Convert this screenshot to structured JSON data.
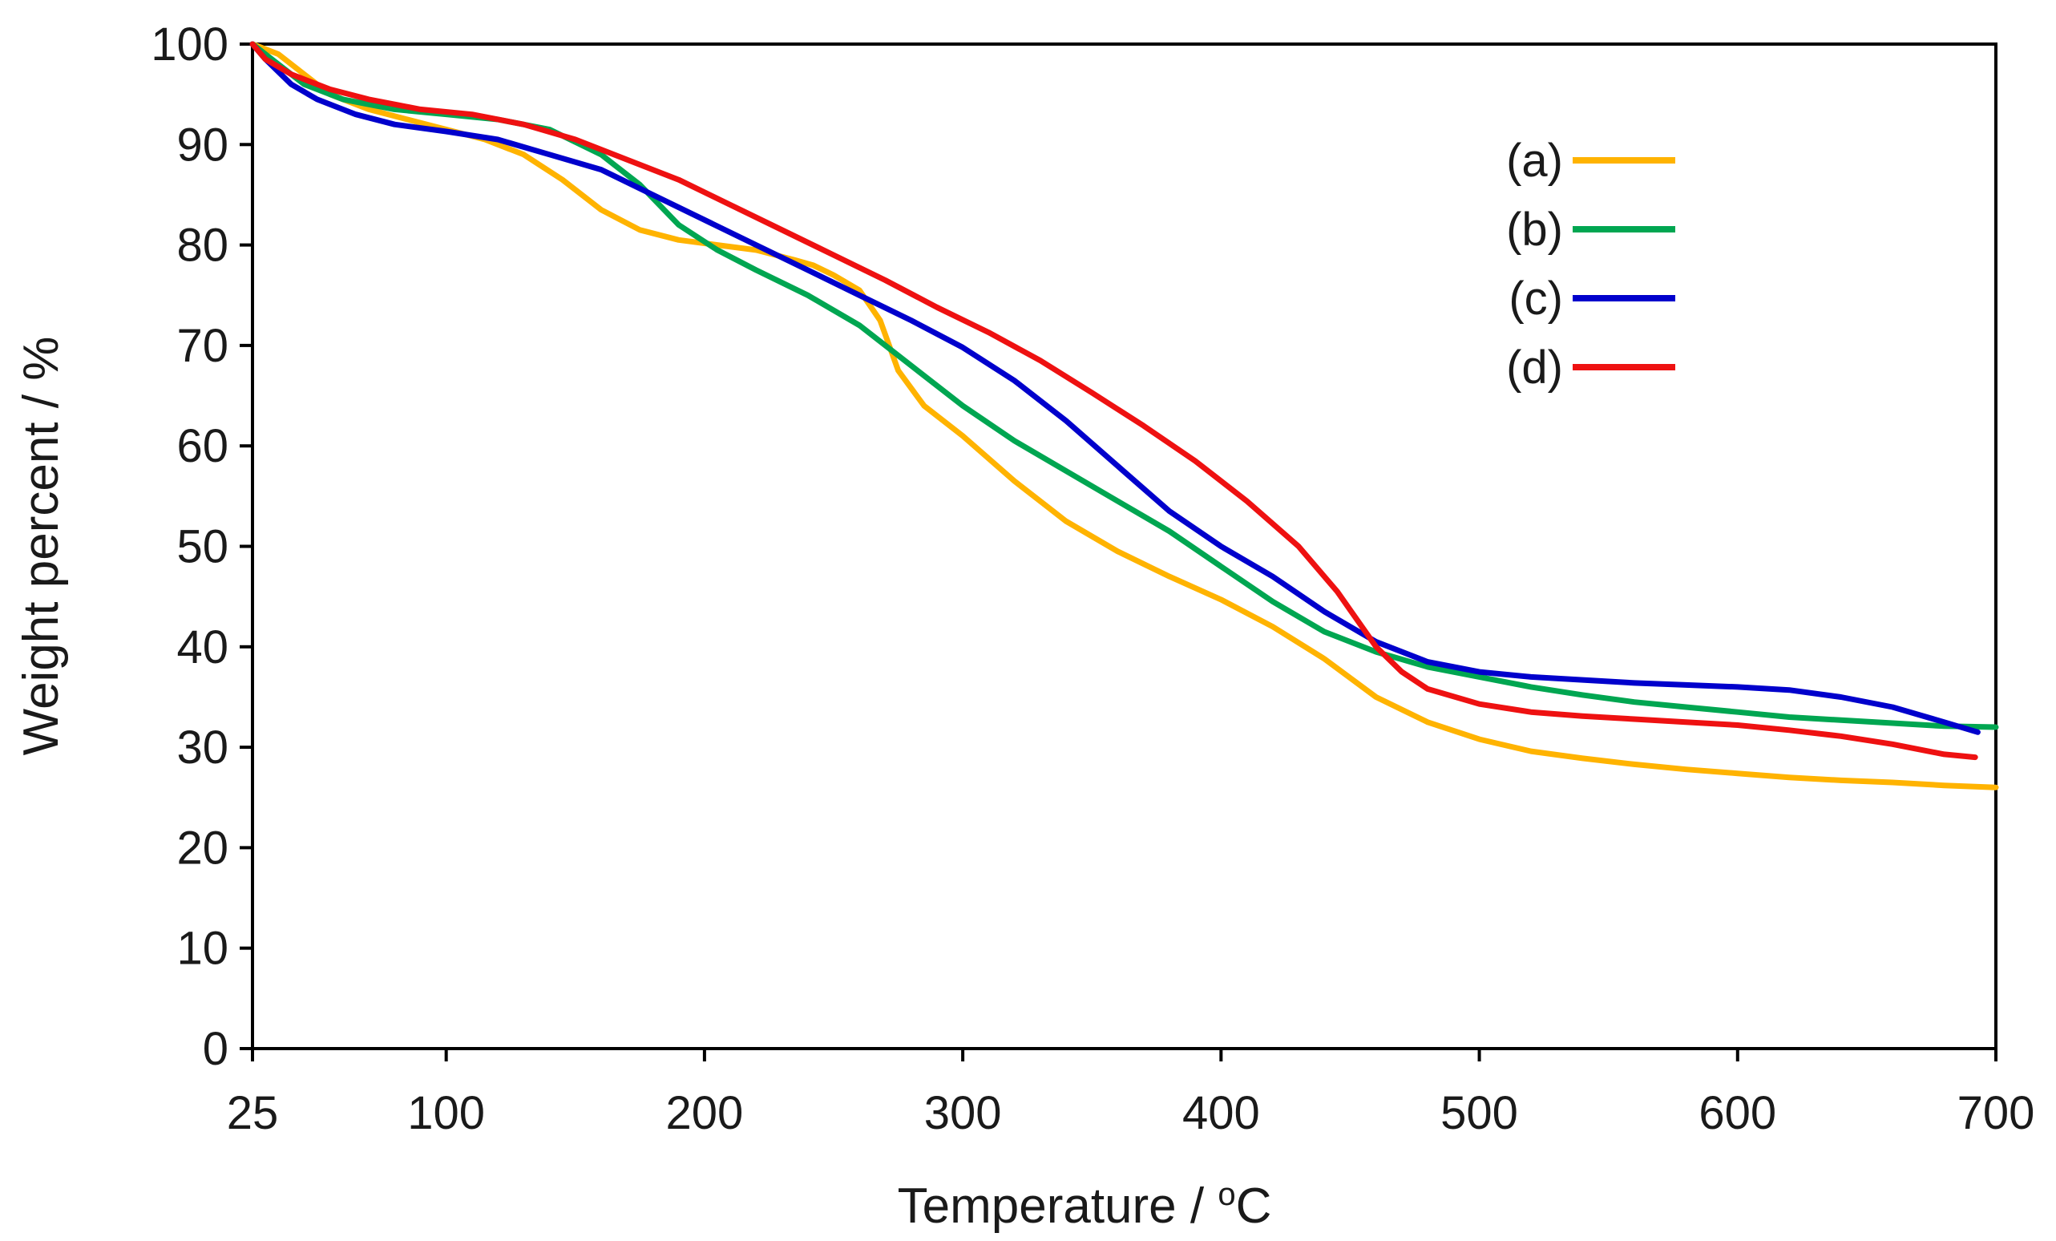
{
  "chart_data": {
    "type": "line",
    "title": "",
    "xlabel": "Temperature / ",
    "xlabel_superscript": "o",
    "xlabel_unit": "C",
    "ylabel": "Weight percent / %",
    "xlim": [
      25,
      700
    ],
    "ylim": [
      0,
      100
    ],
    "xticks": [
      25,
      100,
      200,
      300,
      400,
      500,
      600,
      700
    ],
    "yticks": [
      0,
      10,
      20,
      30,
      40,
      50,
      60,
      70,
      80,
      90,
      100
    ],
    "grid": false,
    "legend_position": "top-right",
    "series": [
      {
        "name": "(a)",
        "color": "#FFB300",
        "points": [
          [
            25,
            100
          ],
          [
            35,
            99
          ],
          [
            45,
            97
          ],
          [
            55,
            95
          ],
          [
            70,
            93.5
          ],
          [
            85,
            92.5
          ],
          [
            100,
            91.5
          ],
          [
            115,
            90.5
          ],
          [
            130,
            89
          ],
          [
            145,
            86.5
          ],
          [
            160,
            83.5
          ],
          [
            175,
            81.5
          ],
          [
            190,
            80.5
          ],
          [
            205,
            80
          ],
          [
            220,
            79.5
          ],
          [
            235,
            78.5
          ],
          [
            242,
            78
          ],
          [
            250,
            77
          ],
          [
            260,
            75.5
          ],
          [
            268,
            72.5
          ],
          [
            275,
            67.5
          ],
          [
            285,
            64
          ],
          [
            300,
            61
          ],
          [
            320,
            56.5
          ],
          [
            340,
            52.5
          ],
          [
            360,
            49.5
          ],
          [
            380,
            47
          ],
          [
            400,
            44.7
          ],
          [
            420,
            42
          ],
          [
            440,
            38.8
          ],
          [
            460,
            35
          ],
          [
            480,
            32.5
          ],
          [
            500,
            30.8
          ],
          [
            520,
            29.6
          ],
          [
            540,
            28.9
          ],
          [
            560,
            28.3
          ],
          [
            580,
            27.8
          ],
          [
            600,
            27.4
          ],
          [
            620,
            27
          ],
          [
            640,
            26.7
          ],
          [
            660,
            26.5
          ],
          [
            680,
            26.2
          ],
          [
            700,
            26
          ]
        ]
      },
      {
        "name": "(b)",
        "color": "#00A651",
        "points": [
          [
            25,
            100
          ],
          [
            35,
            98
          ],
          [
            45,
            96
          ],
          [
            60,
            94.5
          ],
          [
            80,
            93.5
          ],
          [
            100,
            93
          ],
          [
            120,
            92.5
          ],
          [
            140,
            91.5
          ],
          [
            160,
            89
          ],
          [
            175,
            86
          ],
          [
            190,
            82
          ],
          [
            205,
            79.5
          ],
          [
            220,
            77.5
          ],
          [
            240,
            75
          ],
          [
            260,
            72
          ],
          [
            280,
            68
          ],
          [
            300,
            64
          ],
          [
            320,
            60.5
          ],
          [
            340,
            57.5
          ],
          [
            360,
            54.5
          ],
          [
            380,
            51.5
          ],
          [
            400,
            48
          ],
          [
            420,
            44.5
          ],
          [
            440,
            41.5
          ],
          [
            460,
            39.5
          ],
          [
            480,
            38
          ],
          [
            500,
            37
          ],
          [
            520,
            36
          ],
          [
            540,
            35.2
          ],
          [
            560,
            34.5
          ],
          [
            580,
            34
          ],
          [
            600,
            33.5
          ],
          [
            620,
            33
          ],
          [
            640,
            32.7
          ],
          [
            660,
            32.4
          ],
          [
            680,
            32.1
          ],
          [
            700,
            32
          ]
        ]
      },
      {
        "name": "(c)",
        "color": "#0000CC",
        "points": [
          [
            25,
            100
          ],
          [
            30,
            98.5
          ],
          [
            40,
            96
          ],
          [
            50,
            94.5
          ],
          [
            65,
            93
          ],
          [
            80,
            92
          ],
          [
            100,
            91.3
          ],
          [
            120,
            90.5
          ],
          [
            140,
            89
          ],
          [
            160,
            87.5
          ],
          [
            180,
            85
          ],
          [
            200,
            82.5
          ],
          [
            220,
            80
          ],
          [
            240,
            77.5
          ],
          [
            260,
            75
          ],
          [
            280,
            72.5
          ],
          [
            300,
            69.8
          ],
          [
            320,
            66.5
          ],
          [
            340,
            62.5
          ],
          [
            360,
            58
          ],
          [
            380,
            53.5
          ],
          [
            400,
            50
          ],
          [
            420,
            47
          ],
          [
            440,
            43.5
          ],
          [
            460,
            40.5
          ],
          [
            480,
            38.5
          ],
          [
            500,
            37.5
          ],
          [
            520,
            37
          ],
          [
            540,
            36.7
          ],
          [
            560,
            36.4
          ],
          [
            580,
            36.2
          ],
          [
            600,
            36
          ],
          [
            620,
            35.7
          ],
          [
            640,
            35
          ],
          [
            660,
            34
          ],
          [
            680,
            32.5
          ],
          [
            693,
            31.5
          ]
        ]
      },
      {
        "name": "(d)",
        "color": "#EE1111",
        "points": [
          [
            25,
            100
          ],
          [
            30,
            98.5
          ],
          [
            40,
            97
          ],
          [
            55,
            95.5
          ],
          [
            70,
            94.5
          ],
          [
            90,
            93.5
          ],
          [
            110,
            93
          ],
          [
            130,
            92
          ],
          [
            150,
            90.5
          ],
          [
            170,
            88.5
          ],
          [
            190,
            86.5
          ],
          [
            210,
            84
          ],
          [
            230,
            81.5
          ],
          [
            250,
            79
          ],
          [
            270,
            76.5
          ],
          [
            290,
            73.8
          ],
          [
            310,
            71.3
          ],
          [
            330,
            68.5
          ],
          [
            350,
            65.3
          ],
          [
            370,
            62
          ],
          [
            390,
            58.5
          ],
          [
            410,
            54.5
          ],
          [
            430,
            50
          ],
          [
            445,
            45.5
          ],
          [
            460,
            40
          ],
          [
            470,
            37.5
          ],
          [
            480,
            35.8
          ],
          [
            500,
            34.3
          ],
          [
            520,
            33.5
          ],
          [
            540,
            33.1
          ],
          [
            560,
            32.8
          ],
          [
            580,
            32.5
          ],
          [
            600,
            32.2
          ],
          [
            620,
            31.7
          ],
          [
            640,
            31.1
          ],
          [
            660,
            30.3
          ],
          [
            680,
            29.3
          ],
          [
            692,
            29
          ]
        ]
      }
    ]
  }
}
